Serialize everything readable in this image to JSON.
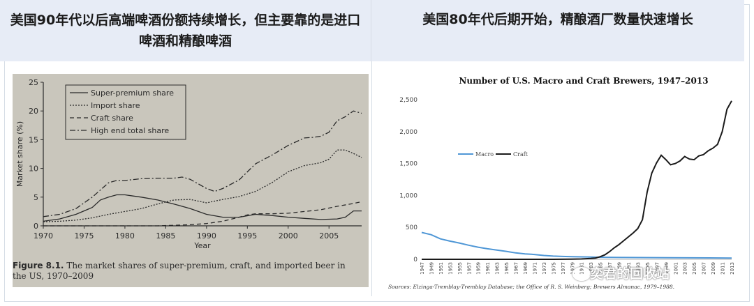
{
  "headers": {
    "left": "美国90年代以后高端啤酒份额持续增长，但主要靠的是进口啤酒和精酿啤酒",
    "right": "美国80年代后期开始，精酿酒厂数量快速增长"
  },
  "figure_caption": {
    "label": "Figure 8.1.",
    "text": "The market shares of super-premium, craft, and imported beer in the US, 1970–2009"
  },
  "source_note": "Sources: Elzinga-Tremblay-Tremblay Database; the Office of R. S. Weinberg; Brewers Almanac, 1979–1988.",
  "watermark": "奕君的回收站",
  "colors": {
    "macro": "#4f97d6",
    "craft": "#1a1a1a",
    "photo_bg": "#c9c6bc",
    "header_bg": "#e7ecf6"
  },
  "chart_data": [
    {
      "type": "line",
      "title": "",
      "xlabel": "Year",
      "ylabel": "Market share (%)",
      "xlim": [
        1970,
        2009
      ],
      "ylim": [
        0,
        25
      ],
      "xticks": [
        1970,
        1975,
        1980,
        1985,
        1990,
        1995,
        2000,
        2005
      ],
      "yticks": [
        0,
        5,
        10,
        15,
        20,
        25
      ],
      "legend": [
        "Super-premium share",
        "Import share",
        "Craft share",
        "High end total share"
      ],
      "legend_position": "top-left",
      "series": [
        {
          "name": "Super-premium share",
          "style": "solid",
          "x": [
            1970,
            1972,
            1974,
            1976,
            1977,
            1978,
            1979,
            1980,
            1981,
            1982,
            1984,
            1986,
            1988,
            1990,
            1992,
            1994,
            1996,
            1998,
            2000,
            2002,
            2004,
            2006,
            2007,
            2008,
            2009
          ],
          "y": [
            0.8,
            1.2,
            2.0,
            3.2,
            4.5,
            5.0,
            5.4,
            5.4,
            5.2,
            5.0,
            4.5,
            3.8,
            3.0,
            2.0,
            1.5,
            1.5,
            2.0,
            1.8,
            1.5,
            1.3,
            1.1,
            1.2,
            1.5,
            2.6,
            2.6
          ]
        },
        {
          "name": "Import share",
          "style": "dotted",
          "x": [
            1970,
            1972,
            1974,
            1976,
            1978,
            1980,
            1982,
            1984,
            1986,
            1988,
            1990,
            1992,
            1994,
            1996,
            1998,
            2000,
            2002,
            2004,
            2005,
            2006,
            2007,
            2008,
            2009
          ],
          "y": [
            0.7,
            0.8,
            1.0,
            1.4,
            2.0,
            2.5,
            3.0,
            3.8,
            4.5,
            4.6,
            4.0,
            4.6,
            5.1,
            6.0,
            7.5,
            9.4,
            10.5,
            11.0,
            11.6,
            13.2,
            13.2,
            12.6,
            11.9
          ]
        },
        {
          "name": "Craft share",
          "style": "dashed",
          "x": [
            1970,
            1980,
            1984,
            1986,
            1988,
            1990,
            1992,
            1994,
            1995,
            1996,
            1998,
            2000,
            2002,
            2004,
            2006,
            2008,
            2009
          ],
          "y": [
            0,
            0,
            0,
            0.1,
            0.2,
            0.4,
            0.8,
            1.5,
            1.9,
            2.1,
            2.1,
            2.2,
            2.5,
            2.8,
            3.4,
            3.9,
            4.2
          ]
        },
        {
          "name": "High end total share",
          "style": "dashdot",
          "x": [
            1970,
            1972,
            1974,
            1976,
            1978,
            1979,
            1980,
            1982,
            1984,
            1986,
            1987,
            1988,
            1990,
            1991,
            1992,
            1994,
            1996,
            1998,
            2000,
            2002,
            2003,
            2004,
            2005,
            2006,
            2007,
            2008,
            2009
          ],
          "y": [
            1.6,
            2.0,
            3.0,
            5.0,
            7.5,
            7.9,
            7.9,
            8.2,
            8.3,
            8.3,
            8.5,
            8.1,
            6.5,
            6.0,
            6.5,
            8.0,
            10.8,
            12.3,
            14.0,
            15.3,
            15.4,
            15.6,
            16.3,
            18.3,
            19.0,
            20.0,
            19.6
          ]
        }
      ]
    },
    {
      "type": "line",
      "title": "Number of U.S. Macro and Craft Brewers, 1947–2013",
      "xlabel": "",
      "ylabel": "",
      "xlim": [
        1947,
        2013
      ],
      "ylim": [
        0,
        2500
      ],
      "yticks": [
        0,
        500,
        1000,
        1500,
        2000,
        2500
      ],
      "ytick_labels": [
        "0",
        "500",
        "1,000",
        "1,500",
        "2,000",
        "2,500"
      ],
      "xticks": [
        1947,
        1949,
        1951,
        1953,
        1955,
        1957,
        1959,
        1961,
        1963,
        1965,
        1967,
        1969,
        1971,
        1973,
        1975,
        1977,
        1979,
        1981,
        1983,
        1985,
        1987,
        1989,
        1991,
        1993,
        1995,
        1997,
        1999,
        2001,
        2003,
        2005,
        2007,
        2009,
        2011,
        2013
      ],
      "legend": [
        "Macro",
        "Craft"
      ],
      "legend_position": "center-left",
      "series": [
        {
          "name": "Macro",
          "x": [
            1947,
            1949,
            1951,
            1953,
            1955,
            1957,
            1959,
            1961,
            1963,
            1965,
            1967,
            1969,
            1971,
            1973,
            1975,
            1977,
            1979,
            1981,
            1983,
            1985,
            1990,
            2000,
            2013
          ],
          "y": [
            420,
            385,
            320,
            285,
            255,
            220,
            190,
            165,
            145,
            125,
            100,
            85,
            75,
            60,
            50,
            45,
            40,
            38,
            35,
            32,
            28,
            25,
            20
          ]
        },
        {
          "name": "Craft",
          "x": [
            1947,
            1975,
            1979,
            1981,
            1983,
            1984,
            1985,
            1986,
            1987,
            1988,
            1989,
            1990,
            1991,
            1992,
            1993,
            1994,
            1995,
            1996,
            1997,
            1998,
            1999,
            2000,
            2001,
            2002,
            2003,
            2004,
            2005,
            2006,
            2007,
            2008,
            2009,
            2010,
            2011,
            2012,
            2013
          ],
          "y": [
            0,
            0,
            2,
            5,
            13,
            20,
            40,
            70,
            120,
            180,
            230,
            290,
            350,
            410,
            480,
            620,
            1050,
            1350,
            1510,
            1630,
            1560,
            1480,
            1500,
            1540,
            1610,
            1570,
            1560,
            1620,
            1640,
            1700,
            1740,
            1800,
            2000,
            2350,
            2480
          ]
        }
      ]
    }
  ]
}
